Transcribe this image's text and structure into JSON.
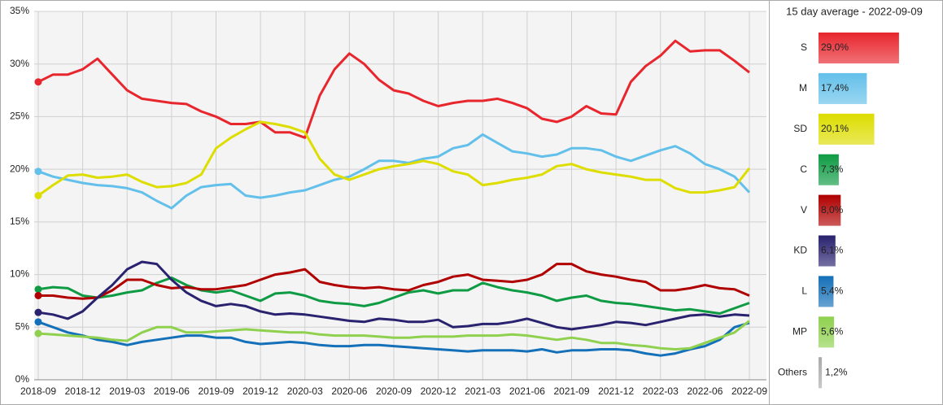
{
  "chart_data": [
    {
      "type": "line",
      "x": [
        "2018-09",
        "2018-10",
        "2018-11",
        "2018-12",
        "2019-01",
        "2019-02",
        "2019-03",
        "2019-04",
        "2019-05",
        "2019-06",
        "2019-07",
        "2019-08",
        "2019-09",
        "2019-10",
        "2019-11",
        "2019-12",
        "2020-01",
        "2020-02",
        "2020-03",
        "2020-04",
        "2020-05",
        "2020-06",
        "2020-07",
        "2020-08",
        "2020-09",
        "2020-10",
        "2020-11",
        "2020-12",
        "2021-01",
        "2021-02",
        "2021-03",
        "2021-04",
        "2021-05",
        "2021-06",
        "2021-07",
        "2021-08",
        "2021-09",
        "2021-10",
        "2021-11",
        "2021-12",
        "2022-01",
        "2022-02",
        "2022-03",
        "2022-04",
        "2022-05",
        "2022-06",
        "2022-07",
        "2022-08",
        "2022-09"
      ],
      "xticks": [
        "2018-09",
        "2018-12",
        "2019-03",
        "2019-06",
        "2019-09",
        "2019-12",
        "2020-03",
        "2020-06",
        "2020-09",
        "2020-12",
        "2021-03",
        "2021-06",
        "2021-09",
        "2021-12",
        "2022-03",
        "2022-06",
        "2022-09"
      ],
      "ylim": [
        0,
        35
      ],
      "yticks": [
        {
          "value": 0,
          "label": "0%"
        },
        {
          "value": 5,
          "label": "5%"
        },
        {
          "value": 10,
          "label": "10%"
        },
        {
          "value": 15,
          "label": "15%"
        },
        {
          "value": 20,
          "label": "20%"
        },
        {
          "value": 25,
          "label": "25%"
        },
        {
          "value": 30,
          "label": "30%"
        },
        {
          "value": 35,
          "label": "35%"
        }
      ],
      "grid": true,
      "series": [
        {
          "name": "S",
          "color": "#e8262d",
          "values": [
            28.3,
            29,
            29,
            29.5,
            30.5,
            29,
            27.5,
            26.7,
            26.5,
            26.3,
            26.2,
            25.5,
            25,
            24.3,
            24.3,
            24.5,
            23.5,
            23.5,
            23,
            27,
            29.5,
            31,
            30,
            28.5,
            27.5,
            27.2,
            26.5,
            26,
            26.3,
            26.5,
            26.5,
            26.7,
            26.3,
            25.8,
            24.8,
            24.5,
            25,
            26,
            25.3,
            25.2,
            28.3,
            29.8,
            30.8,
            32.2,
            31.2,
            31.3,
            31.3,
            30.3,
            29.2
          ]
        },
        {
          "name": "M",
          "color": "#63c0ea",
          "values": [
            19.8,
            19.3,
            19,
            18.7,
            18.5,
            18.4,
            18.2,
            17.8,
            17,
            16.3,
            17.5,
            18.3,
            18.5,
            18.6,
            17.5,
            17.3,
            17.5,
            17.8,
            18,
            18.5,
            19,
            19.3,
            20,
            20.8,
            20.8,
            20.6,
            21,
            21.2,
            22,
            22.3,
            23.3,
            22.5,
            21.7,
            21.5,
            21.2,
            21.4,
            22,
            22,
            21.8,
            21.2,
            20.8,
            21.3,
            21.8,
            22.2,
            21.5,
            20.5,
            20,
            19.3,
            17.8
          ]
        },
        {
          "name": "SD",
          "color": "#dddd00",
          "values": [
            17.5,
            18.5,
            19.4,
            19.5,
            19.2,
            19.3,
            19.5,
            18.8,
            18.3,
            18.4,
            18.7,
            19.5,
            22,
            23,
            23.8,
            24.5,
            24.3,
            24,
            23.5,
            21,
            19.5,
            19,
            19.5,
            20,
            20.3,
            20.5,
            20.8,
            20.5,
            19.8,
            19.5,
            18.5,
            18.7,
            19,
            19.2,
            19.5,
            20.3,
            20.5,
            20,
            19.7,
            19.5,
            19.3,
            19,
            19,
            18.2,
            17.8,
            17.8,
            18,
            18.3,
            20.1
          ]
        },
        {
          "name": "C",
          "color": "#0e9b43",
          "values": [
            8.6,
            8.8,
            8.7,
            8,
            7.8,
            8,
            8.3,
            8.5,
            9.2,
            9.7,
            9,
            8.5,
            8.3,
            8.5,
            8,
            7.5,
            8.2,
            8.3,
            8,
            7.5,
            7.3,
            7.2,
            7,
            7.3,
            7.8,
            8.3,
            8.5,
            8.2,
            8.5,
            8.5,
            9.2,
            8.8,
            8.5,
            8.3,
            8,
            7.5,
            7.8,
            8,
            7.5,
            7.3,
            7.2,
            7,
            6.8,
            6.6,
            6.7,
            6.5,
            6.3,
            6.8,
            7.3
          ]
        },
        {
          "name": "V",
          "color": "#b00000",
          "values": [
            8,
            8,
            7.8,
            7.7,
            7.8,
            8.5,
            9.5,
            9.5,
            9,
            8.7,
            8.8,
            8.6,
            8.6,
            8.8,
            9,
            9.5,
            10,
            10.2,
            10.5,
            9.3,
            9,
            8.8,
            8.7,
            8.8,
            8.6,
            8.5,
            9,
            9.3,
            9.8,
            10,
            9.5,
            9.4,
            9.3,
            9.5,
            10,
            11,
            11,
            10.3,
            10,
            9.8,
            9.5,
            9.3,
            8.5,
            8.5,
            8.7,
            9,
            8.7,
            8.6,
            8
          ]
        },
        {
          "name": "KD",
          "color": "#29226f",
          "values": [
            6.4,
            6.2,
            5.8,
            6.5,
            7.8,
            9,
            10.5,
            11.2,
            11,
            9.5,
            8.3,
            7.5,
            7,
            7.2,
            7,
            6.5,
            6.2,
            6.3,
            6.2,
            6,
            5.8,
            5.6,
            5.5,
            5.8,
            5.7,
            5.5,
            5.5,
            5.7,
            5,
            5.1,
            5.3,
            5.3,
            5.5,
            5.8,
            5.4,
            5,
            4.8,
            5,
            5.2,
            5.5,
            5.4,
            5.2,
            5.5,
            5.8,
            6.1,
            6.2,
            6,
            6.2,
            6.1
          ]
        },
        {
          "name": "L",
          "color": "#1470b8",
          "values": [
            5.5,
            5,
            4.5,
            4.2,
            3.8,
            3.6,
            3.3,
            3.6,
            3.8,
            4,
            4.2,
            4.2,
            4,
            4,
            3.6,
            3.4,
            3.5,
            3.6,
            3.5,
            3.3,
            3.2,
            3.2,
            3.3,
            3.3,
            3.2,
            3.1,
            3,
            2.9,
            2.8,
            2.7,
            2.8,
            2.8,
            2.8,
            2.7,
            2.9,
            2.6,
            2.8,
            2.8,
            2.9,
            2.9,
            2.8,
            2.5,
            2.3,
            2.5,
            2.9,
            3.2,
            3.8,
            5,
            5.4
          ]
        },
        {
          "name": "MP",
          "color": "#8fd14f",
          "values": [
            4.4,
            4.3,
            4.2,
            4.1,
            4,
            3.8,
            3.7,
            4.5,
            5,
            5,
            4.5,
            4.5,
            4.6,
            4.7,
            4.8,
            4.7,
            4.6,
            4.5,
            4.5,
            4.3,
            4.2,
            4.2,
            4.2,
            4.1,
            4,
            4,
            4.1,
            4.1,
            4.1,
            4.2,
            4.2,
            4.2,
            4.3,
            4.2,
            4,
            3.8,
            4,
            3.8,
            3.5,
            3.5,
            3.3,
            3.2,
            3,
            2.9,
            3,
            3.5,
            4,
            4.5,
            5.6
          ]
        }
      ]
    },
    {
      "type": "hbar",
      "title": "15 day average  - 2022-09-09",
      "categories": [
        "S",
        "M",
        "SD",
        "C",
        "V",
        "KD",
        "L",
        "MP",
        "Others"
      ],
      "values": [
        29.0,
        17.4,
        20.1,
        7.3,
        8.0,
        6.1,
        5.4,
        5.6,
        1.2
      ],
      "value_labels": [
        "29,0%",
        "17,4%",
        "20,1%",
        "7,3%",
        "8,0%",
        "6,1%",
        "5,4%",
        "5,6%",
        "1,2%"
      ],
      "colors": [
        "#e8262d",
        "#63c0ea",
        "#dddd00",
        "#0e9b43",
        "#b00000",
        "#29226f",
        "#1470b8",
        "#8fd14f",
        "#aaaaaa"
      ]
    }
  ]
}
